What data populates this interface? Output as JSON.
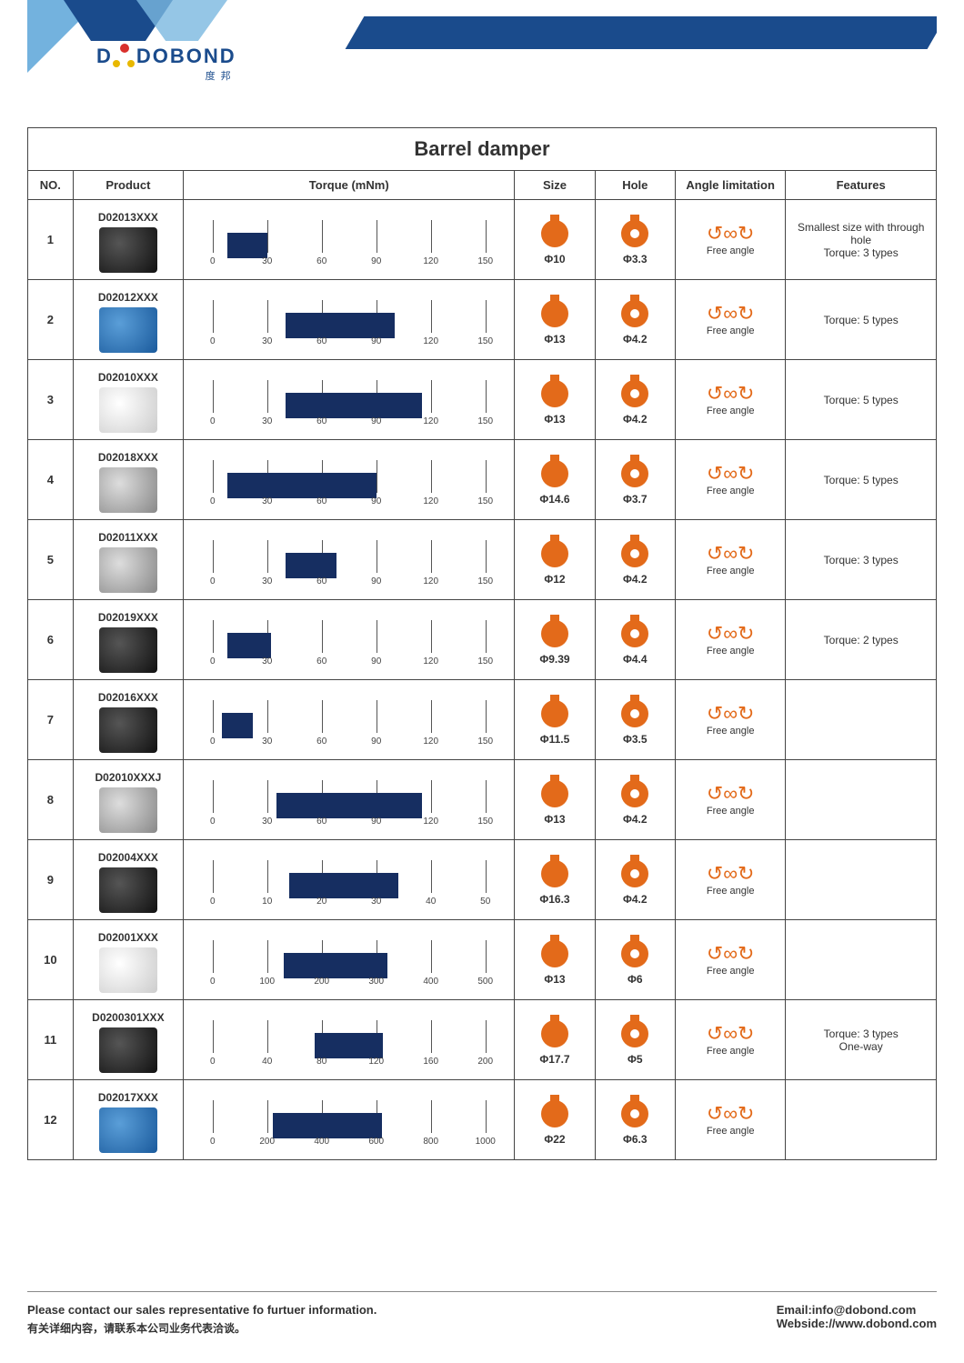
{
  "brand": {
    "name": "DOBOND",
    "sub": "度邦"
  },
  "title": "Barrel damper",
  "columns": {
    "no": "NO.",
    "product": "Product",
    "torque": "Torque (mNm)",
    "size": "Size",
    "hole": "Hole",
    "angle": "Angle limitation",
    "features": "Features"
  },
  "angle_label": "Free angle",
  "rows": [
    {
      "no": "1",
      "product": "D02013XXX",
      "img": "dark",
      "axis_max": 150,
      "ticks": [
        0,
        30,
        60,
        90,
        120,
        150
      ],
      "bar_from": 8,
      "bar_to": 30,
      "size": "Φ10",
      "hole": "Φ3.3",
      "features": "Smallest size with through hole\nTorque: 3 types"
    },
    {
      "no": "2",
      "product": "D02012XXX",
      "img": "blue",
      "axis_max": 150,
      "ticks": [
        0,
        30,
        60,
        90,
        120,
        150
      ],
      "bar_from": 40,
      "bar_to": 100,
      "size": "Φ13",
      "hole": "Φ4.2",
      "features": "Torque: 5 types"
    },
    {
      "no": "3",
      "product": "D02010XXX",
      "img": "white",
      "axis_max": 150,
      "ticks": [
        0,
        30,
        60,
        90,
        120,
        150
      ],
      "bar_from": 40,
      "bar_to": 115,
      "size": "Φ13",
      "hole": "Φ4.2",
      "features": "Torque: 5 types"
    },
    {
      "no": "4",
      "product": "D02018XXX",
      "img": "",
      "axis_max": 150,
      "ticks": [
        0,
        30,
        60,
        90,
        120,
        150
      ],
      "bar_from": 8,
      "bar_to": 90,
      "size": "Φ14.6",
      "hole": "Φ3.7",
      "features": "Torque: 5 types"
    },
    {
      "no": "5",
      "product": "D02011XXX",
      "img": "",
      "axis_max": 150,
      "ticks": [
        0,
        30,
        60,
        90,
        120,
        150
      ],
      "bar_from": 40,
      "bar_to": 68,
      "size": "Φ12",
      "hole": "Φ4.2",
      "features": "Torque: 3 types"
    },
    {
      "no": "6",
      "product": "D02019XXX",
      "img": "dark",
      "axis_max": 150,
      "ticks": [
        0,
        30,
        60,
        90,
        120,
        150
      ],
      "bar_from": 8,
      "bar_to": 32,
      "size": "Φ9.39",
      "hole": "Φ4.4",
      "features": "Torque: 2 types"
    },
    {
      "no": "7",
      "product": "D02016XXX",
      "img": "dark",
      "axis_max": 150,
      "ticks": [
        0,
        30,
        60,
        90,
        120,
        150
      ],
      "bar_from": 5,
      "bar_to": 22,
      "size": "Φ11.5",
      "hole": "Φ3.5",
      "features": ""
    },
    {
      "no": "8",
      "product": "D02010XXXJ",
      "img": "",
      "axis_max": 150,
      "ticks": [
        0,
        30,
        60,
        90,
        120,
        150
      ],
      "bar_from": 35,
      "bar_to": 115,
      "size": "Φ13",
      "hole": "Φ4.2",
      "features": ""
    },
    {
      "no": "9",
      "product": "D02004XXX",
      "img": "dark",
      "axis_max": 50,
      "ticks": [
        0,
        10,
        20,
        30,
        40,
        50
      ],
      "bar_from": 14,
      "bar_to": 34,
      "size": "Φ16.3",
      "hole": "Φ4.2",
      "features": ""
    },
    {
      "no": "10",
      "product": "D02001XXX",
      "img": "white",
      "axis_max": 500,
      "ticks": [
        0,
        100,
        200,
        300,
        400,
        500
      ],
      "bar_from": 130,
      "bar_to": 320,
      "size": "Φ13",
      "hole": "Φ6",
      "features": ""
    },
    {
      "no": "11",
      "product": "D0200301XXX",
      "img": "dark",
      "axis_max": 200,
      "ticks": [
        0,
        40,
        80,
        120,
        160,
        200
      ],
      "bar_from": 75,
      "bar_to": 125,
      "size": "Φ17.7",
      "hole": "Φ5",
      "features": "Torque: 3 types\nOne-way"
    },
    {
      "no": "12",
      "product": "D02017XXX",
      "img": "blue",
      "axis_max": 1000,
      "ticks": [
        0,
        200,
        400,
        600,
        800,
        1000
      ],
      "bar_from": 220,
      "bar_to": 620,
      "size": "Φ22",
      "hole": "Φ6.3",
      "features": ""
    }
  ],
  "footer": {
    "contact_en": "Please contact our sales representative fo furtuer information.",
    "contact_cn": "有关详细内容，请联系本公司业务代表洽谈。",
    "email_lbl": "Email:",
    "email": "info@dobond.com",
    "web_lbl": "Webside://",
    "web": "www.dobond.com"
  },
  "colors": {
    "bar": "#162e61",
    "accent": "#e36a1a"
  }
}
